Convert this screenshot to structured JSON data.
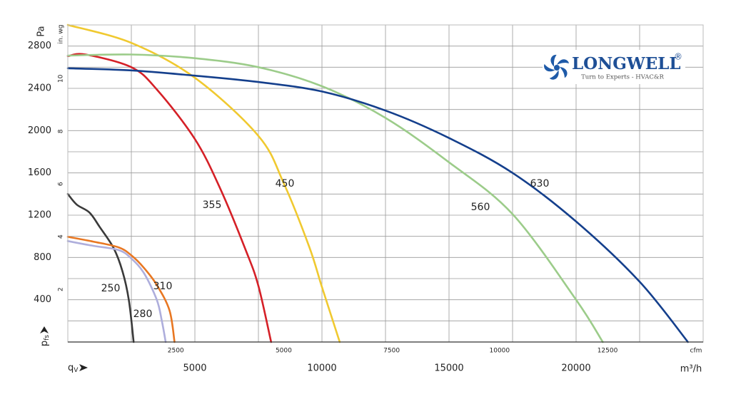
{
  "chart_data": {
    "type": "line",
    "logo": {
      "brand": "LONGWELL",
      "mark": "®",
      "tagline": "Turn to Experts - HVAC&R"
    },
    "ylabel": "Pa",
    "y2label": "in. wg",
    "xlabel": "m³/h",
    "x2label": "cfm",
    "x_symbol": {
      "base": "q",
      "sub": "V"
    },
    "y_symbol": {
      "base": "p",
      "sub": "fs"
    },
    "xlim": [
      0,
      25000
    ],
    "xticks": [
      5000,
      10000,
      15000,
      20000
    ],
    "x2lim": [
      0,
      14715
    ],
    "x2ticks": [
      2500,
      5000,
      7500,
      10000,
      12500
    ],
    "ylim": [
      0,
      3000
    ],
    "yticks": [
      400,
      800,
      1200,
      1600,
      2000,
      2400,
      2800
    ],
    "y2lim": [
      0,
      12.04
    ],
    "y2ticks": [
      2,
      4,
      6,
      8,
      10
    ],
    "grid": true,
    "series": [
      {
        "name": "250",
        "color": "#3a3a3a",
        "x": [
          0,
          350,
          850,
          1250,
          1800,
          2150,
          2400,
          2590
        ],
        "values": [
          1400,
          1300,
          1225,
          1090,
          890,
          670,
          400,
          0
        ]
      },
      {
        "name": "280",
        "color": "#aeaedc",
        "x": [
          0,
          1000,
          2000,
          2500,
          3000,
          3500,
          3700,
          3850
        ],
        "values": [
          955,
          910,
          870,
          790,
          650,
          400,
          200,
          0
        ]
      },
      {
        "name": "310",
        "color": "#e87722",
        "x": [
          0,
          1000,
          2000,
          2500,
          3000,
          3500,
          4000,
          4200
        ],
        "values": [
          995,
          950,
          895,
          820,
          700,
          540,
          300,
          0
        ]
      },
      {
        "name": "355",
        "color": "#d52027",
        "x": [
          0,
          700,
          2500,
          3500,
          5000,
          6000,
          7000,
          7500,
          8000
        ],
        "values": [
          2705,
          2720,
          2600,
          2390,
          1920,
          1450,
          870,
          530,
          0
        ]
      },
      {
        "name": "450",
        "color": "#f0c930",
        "x": [
          0,
          2500,
          5000,
          7500,
          8500,
          9500,
          10000,
          10700
        ],
        "values": [
          3000,
          2830,
          2500,
          1950,
          1500,
          900,
          520,
          0
        ]
      },
      {
        "name": "560",
        "color": "#9ccc8a",
        "x": [
          0,
          2500,
          5000,
          7500,
          10000,
          12500,
          15000,
          17500,
          20000,
          21050
        ],
        "values": [
          2710,
          2720,
          2685,
          2600,
          2420,
          2120,
          1700,
          1210,
          400,
          0
        ]
      },
      {
        "name": "630",
        "color": "#143f8c",
        "x": [
          0,
          2500,
          5000,
          7500,
          10000,
          12500,
          15000,
          17500,
          20000,
          22500,
          24400
        ],
        "values": [
          2590,
          2570,
          2520,
          2460,
          2370,
          2190,
          1930,
          1600,
          1140,
          570,
          0
        ]
      }
    ]
  }
}
